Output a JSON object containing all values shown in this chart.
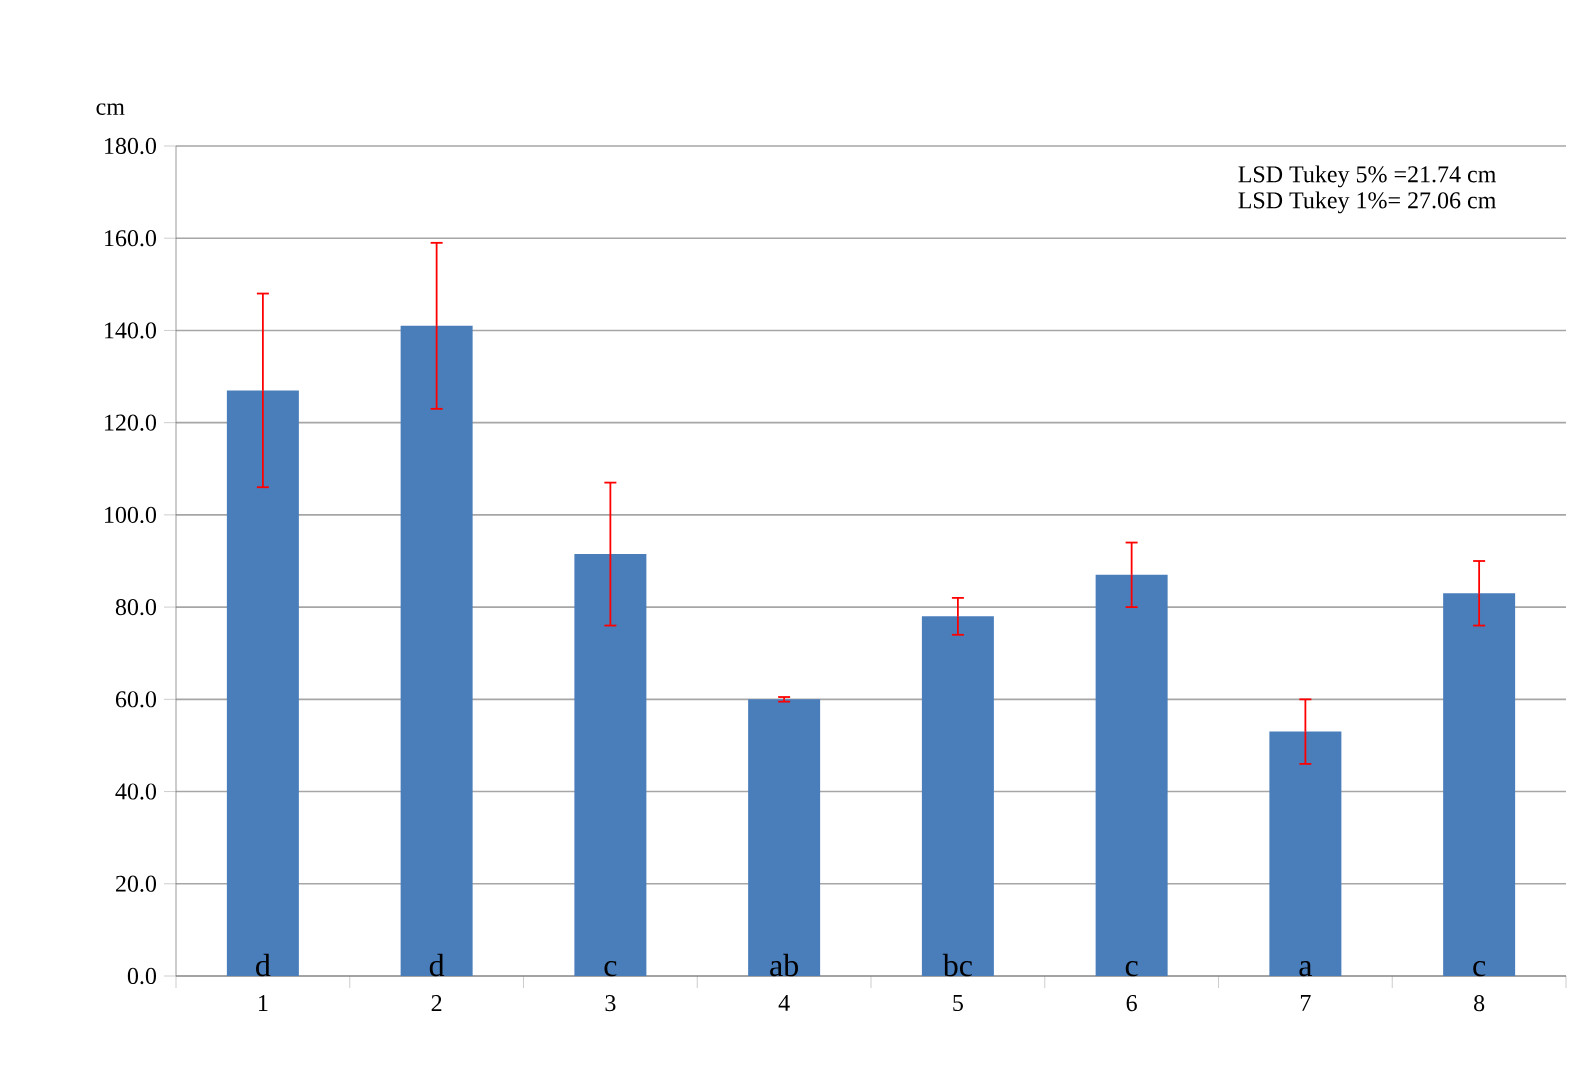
{
  "chart_data": {
    "type": "bar",
    "ylabel": "cm",
    "categories": [
      "1",
      "2",
      "3",
      "4",
      "5",
      "6",
      "7",
      "8"
    ],
    "values": [
      127,
      141,
      91.5,
      60,
      78,
      87,
      53,
      83
    ],
    "errors": [
      21,
      18,
      15.5,
      0.5,
      4,
      7,
      7,
      7
    ],
    "color": "#4a7ebb",
    "ylim": [
      0,
      180
    ],
    "yticks": [
      {
        "value": 0,
        "label": "0.0"
      },
      {
        "value": 20,
        "label": "20.0"
      },
      {
        "value": 40,
        "label": "40.0"
      },
      {
        "value": 60,
        "label": "60.0"
      },
      {
        "value": 80,
        "label": "80.0"
      },
      {
        "value": 100,
        "label": "100.0"
      },
      {
        "value": 120,
        "label": "120.0"
      },
      {
        "value": 140,
        "label": "140.0"
      },
      {
        "value": 160,
        "label": "160.0"
      },
      {
        "value": 180,
        "label": "180.0"
      }
    ],
    "grid": "y",
    "annotations": [
      "LSD Tukey  5% =21.74 cm",
      "LSD Tukey  1%= 27.06 cm",
      "d",
      "d",
      "c",
      "ab",
      "bc",
      "c",
      "a",
      "c"
    ]
  }
}
